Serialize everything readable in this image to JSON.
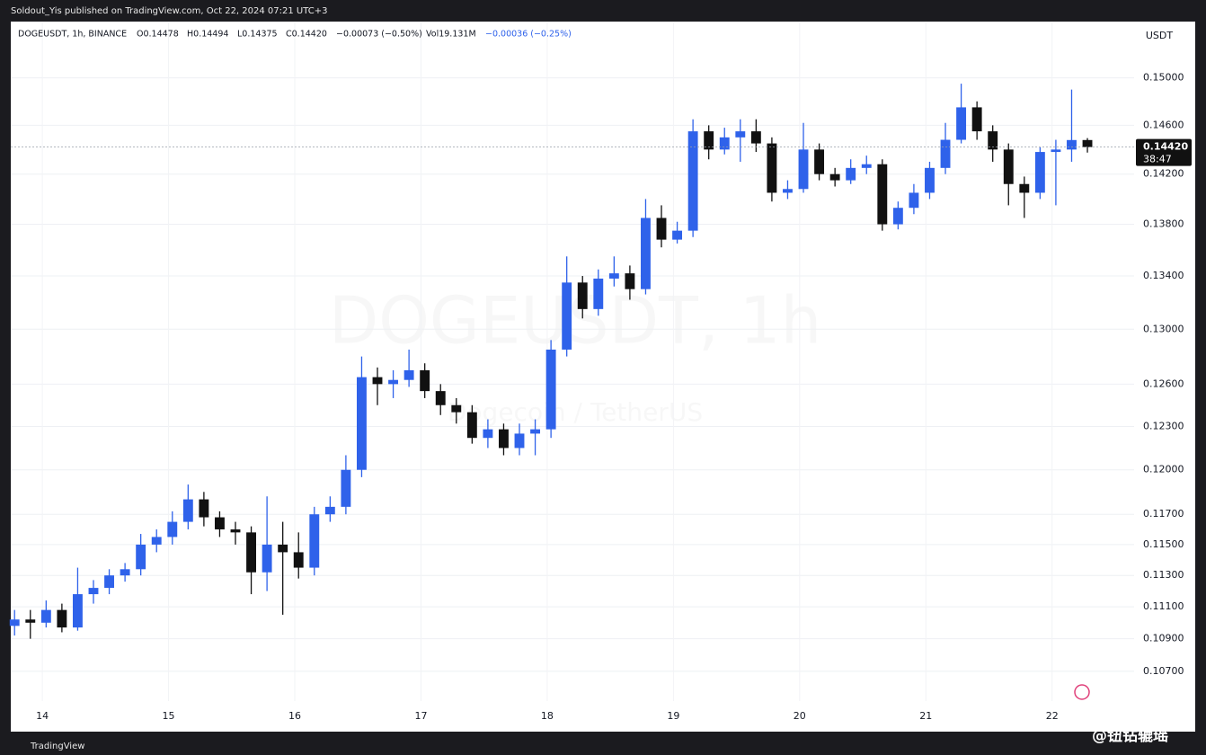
{
  "publisher": "Soldout_Yis published on TradingView.com, Oct 22, 2024 07:21 UTC+3",
  "header": {
    "symbol": "DOGEUSDT, 1h, BINANCE",
    "open": "O0.14478",
    "high": "H0.14494",
    "low": "L0.14375",
    "close": "C0.14420",
    "change": "−0.00073 (−0.50%)",
    "volume": "Vol19.131M",
    "indicator": "−0.00036 (−0.25%)"
  },
  "watermark": {
    "title": "DOGEUSDT, 1h",
    "subtitle": "Dogecoin / TetherUS"
  },
  "footer": {
    "brand": "TradingView",
    "handle": "@钮钻辘瑶"
  },
  "chart_data": {
    "type": "candlestick",
    "y_axis_label": "USDT",
    "log_scale": true,
    "grid": true,
    "up_color": "#2f62ea",
    "down_color": "#111111",
    "xlim": [
      13.75,
      22.65
    ],
    "xticks": [
      14,
      15,
      16,
      17,
      18,
      19,
      20,
      21,
      22
    ],
    "ylim": [
      0.1052,
      0.1548
    ],
    "yticks": [
      {
        "value": 0.107,
        "label": "0.10700"
      },
      {
        "value": 0.109,
        "label": "0.10900"
      },
      {
        "value": 0.111,
        "label": "0.11100"
      },
      {
        "value": 0.113,
        "label": "0.11300"
      },
      {
        "value": 0.115,
        "label": "0.11500"
      },
      {
        "value": 0.117,
        "label": "0.11700"
      },
      {
        "value": 0.12,
        "label": "0.12000"
      },
      {
        "value": 0.123,
        "label": "0.12300"
      },
      {
        "value": 0.126,
        "label": "0.12600"
      },
      {
        "value": 0.13,
        "label": "0.13000"
      },
      {
        "value": 0.134,
        "label": "0.13400"
      },
      {
        "value": 0.138,
        "label": "0.13800"
      },
      {
        "value": 0.142,
        "label": "0.14200"
      },
      {
        "value": 0.146,
        "label": "0.14600"
      },
      {
        "value": 0.15,
        "label": "0.15000"
      }
    ],
    "last_price": {
      "value": 0.1442,
      "label": "0.14420"
    },
    "countdown": "38:47",
    "series": [
      {
        "name": "DOGEUSDT",
        "x": [
          13.78,
          13.905,
          14.03,
          14.155,
          14.28,
          14.405,
          14.53,
          14.655,
          14.78,
          14.905,
          15.03,
          15.155,
          15.28,
          15.405,
          15.53,
          15.655,
          15.78,
          15.905,
          16.03,
          16.155,
          16.28,
          16.405,
          16.53,
          16.655,
          16.78,
          16.905,
          17.03,
          17.155,
          17.28,
          17.405,
          17.53,
          17.655,
          17.78,
          17.905,
          18.03,
          18.155,
          18.28,
          18.405,
          18.53,
          18.655,
          18.78,
          18.905,
          19.03,
          19.155,
          19.28,
          19.405,
          19.53,
          19.655,
          19.78,
          19.905,
          20.03,
          20.155,
          20.28,
          20.405,
          20.53,
          20.655,
          20.78,
          20.905,
          21.03,
          21.155,
          21.28,
          21.405,
          21.53,
          21.655,
          21.78,
          21.905,
          22.03,
          22.155,
          22.28
        ],
        "open": [
          0.1098,
          0.1102,
          0.11,
          0.1108,
          0.1097,
          0.1118,
          0.1122,
          0.113,
          0.1134,
          0.115,
          0.1155,
          0.1165,
          0.118,
          0.1168,
          0.116,
          0.1158,
          0.1132,
          0.115,
          0.1145,
          0.1135,
          0.117,
          0.1175,
          0.12,
          0.1265,
          0.126,
          0.1263,
          0.127,
          0.1255,
          0.1245,
          0.124,
          0.1222,
          0.1228,
          0.1215,
          0.1225,
          0.1228,
          0.1285,
          0.1335,
          0.1315,
          0.1338,
          0.1342,
          0.133,
          0.1385,
          0.1368,
          0.1375,
          0.1455,
          0.144,
          0.145,
          0.1455,
          0.1445,
          0.1405,
          0.1408,
          0.144,
          0.142,
          0.1415,
          0.1425,
          0.1428,
          0.138,
          0.1393,
          0.1405,
          0.1425,
          0.1448,
          0.1475,
          0.1455,
          0.144,
          0.1412,
          0.1405,
          0.1438,
          0.144,
          0.14478
        ],
        "high": [
          0.1108,
          0.1108,
          0.1114,
          0.1112,
          0.1135,
          0.1127,
          0.1134,
          0.1138,
          0.1157,
          0.116,
          0.1172,
          0.119,
          0.1185,
          0.1172,
          0.1165,
          0.1162,
          0.1182,
          0.1165,
          0.1158,
          0.1175,
          0.1182,
          0.121,
          0.128,
          0.1272,
          0.127,
          0.1285,
          0.1275,
          0.126,
          0.125,
          0.1245,
          0.1235,
          0.1232,
          0.1232,
          0.1235,
          0.1292,
          0.1355,
          0.134,
          0.1345,
          0.1355,
          0.1348,
          0.14,
          0.1395,
          0.1382,
          0.1465,
          0.146,
          0.1458,
          0.1465,
          0.1465,
          0.145,
          0.1415,
          0.1462,
          0.1445,
          0.1425,
          0.1432,
          0.1435,
          0.1432,
          0.1398,
          0.1412,
          0.143,
          0.1462,
          0.1495,
          0.148,
          0.146,
          0.1445,
          0.1418,
          0.1442,
          0.1448,
          0.149,
          0.14494
        ],
        "low": [
          0.1092,
          0.109,
          0.1097,
          0.1094,
          0.1095,
          0.1112,
          0.1118,
          0.1126,
          0.113,
          0.1145,
          0.115,
          0.116,
          0.1162,
          0.1155,
          0.115,
          0.1118,
          0.112,
          0.1105,
          0.1128,
          0.113,
          0.1165,
          0.117,
          0.1195,
          0.1245,
          0.125,
          0.1258,
          0.125,
          0.1238,
          0.1232,
          0.1218,
          0.1215,
          0.121,
          0.121,
          0.121,
          0.1222,
          0.128,
          0.1308,
          0.131,
          0.1332,
          0.1322,
          0.1326,
          0.1362,
          0.1365,
          0.137,
          0.1432,
          0.1436,
          0.143,
          0.1438,
          0.1398,
          0.14,
          0.1405,
          0.1415,
          0.141,
          0.1412,
          0.142,
          0.1375,
          0.1376,
          0.1388,
          0.14,
          0.142,
          0.1445,
          0.1448,
          0.143,
          0.1395,
          0.1385,
          0.14,
          0.1395,
          0.143,
          0.14375
        ],
        "close": [
          0.1102,
          0.11,
          0.1108,
          0.1097,
          0.1118,
          0.1122,
          0.113,
          0.1134,
          0.115,
          0.1155,
          0.1165,
          0.118,
          0.1168,
          0.116,
          0.1158,
          0.1132,
          0.115,
          0.1145,
          0.1135,
          0.117,
          0.1175,
          0.12,
          0.1265,
          0.126,
          0.1263,
          0.127,
          0.1255,
          0.1245,
          0.124,
          0.1222,
          0.1228,
          0.1215,
          0.1225,
          0.1228,
          0.1285,
          0.1335,
          0.1315,
          0.1338,
          0.1342,
          0.133,
          0.1385,
          0.1368,
          0.1375,
          0.1455,
          0.144,
          0.145,
          0.1455,
          0.1445,
          0.1405,
          0.1408,
          0.144,
          0.142,
          0.1415,
          0.1425,
          0.1428,
          0.138,
          0.1393,
          0.1405,
          0.1425,
          0.1448,
          0.1475,
          0.1455,
          0.144,
          0.1412,
          0.1405,
          0.1438,
          0.144,
          0.14478,
          0.1442
        ]
      }
    ]
  }
}
